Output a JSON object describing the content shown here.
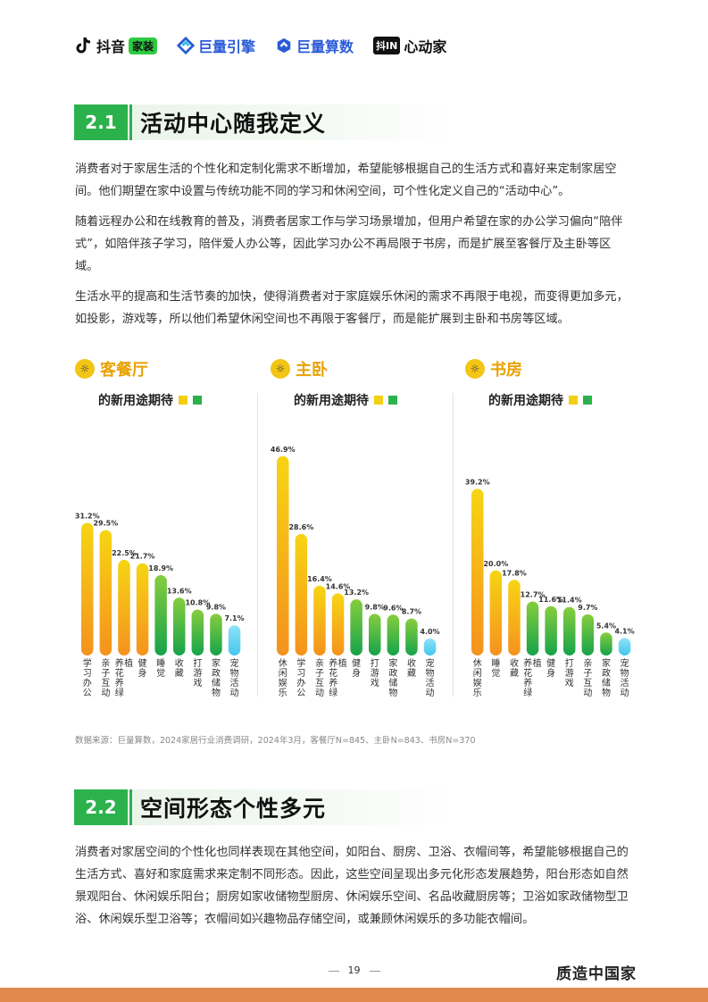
{
  "header": {
    "logos": [
      {
        "name": "抖音",
        "tag": "家装"
      },
      {
        "name": "巨量引擎"
      },
      {
        "name": "巨量算数"
      },
      {
        "name": "心动家",
        "tag": "抖IN"
      }
    ]
  },
  "section1": {
    "num": "2.1",
    "title": "活动中心随我定义",
    "paragraphs": [
      "消费者对于家居生活的个性化和定制化需求不断增加，希望能够根据自己的生活方式和喜好来定制家居空间。他们期望在家中设置与传统功能不同的学习和休闲空间，可个性化定义自己的“活动中心”。",
      "随着远程办公和在线教育的普及，消费者居家工作与学习场景增加，但用户希望在家的办公学习偏向“陪伴式”，如陪伴孩子学习，陪伴爱人办公等，因此学习办公不再局限于书房，而是扩展至客餐厅及主卧等区域。",
      "生活水平的提高和生活节奏的加快，使得消费者对于家庭娱乐休闲的需求不再限于电视，而变得更加多元，如投影，游戏等，所以他们希望休闲空间也不再限于客餐厅，而是能扩展到主卧和书房等区域。"
    ]
  },
  "chart_subtitle": "的新用途期待",
  "chart_data": [
    {
      "type": "bar",
      "title": "客餐厅",
      "categories": [
        "学习办公",
        "亲子互动",
        "养花养绿植",
        "健身",
        "睡觉",
        "收藏",
        "打游戏",
        "家政储物",
        "宠物活动"
      ],
      "values": [
        31.2,
        29.5,
        22.5,
        21.7,
        18.9,
        13.6,
        10.8,
        9.8,
        7.1
      ],
      "labels": [
        "31.2%",
        "29.5%",
        "22.5%",
        "21.7%",
        "18.9%",
        "13.6%",
        "10.8%",
        "9.8%",
        "7.1%"
      ],
      "colors": [
        "yellow",
        "yellow",
        "yellow",
        "yellow",
        "green",
        "green",
        "green",
        "green",
        "blue"
      ],
      "ylim": [
        0,
        50
      ]
    },
    {
      "type": "bar",
      "title": "主卧",
      "categories": [
        "休闲娱乐",
        "学习办公",
        "亲子互动",
        "养花养绿植",
        "健身",
        "打游戏",
        "家政储物",
        "收藏",
        "宠物活动"
      ],
      "values": [
        46.9,
        28.6,
        16.4,
        14.6,
        13.2,
        9.8,
        9.6,
        8.7,
        4.0
      ],
      "labels": [
        "46.9%",
        "28.6%",
        "16.4%",
        "14.6%",
        "13.2%",
        "9.8%",
        "9.6%",
        "8.7%",
        "4.0%"
      ],
      "colors": [
        "yellow",
        "yellow",
        "yellow",
        "yellow",
        "green",
        "green",
        "green",
        "green",
        "blue"
      ],
      "ylim": [
        0,
        50
      ]
    },
    {
      "type": "bar",
      "title": "书房",
      "categories": [
        "休闲娱乐",
        "睡觉",
        "收藏",
        "养花养绿植",
        "健身",
        "打游戏",
        "亲子互动",
        "家政储物",
        "宠物活动"
      ],
      "values": [
        39.2,
        20.0,
        17.8,
        12.7,
        11.6,
        11.4,
        9.7,
        5.4,
        4.1
      ],
      "labels": [
        "39.2%",
        "20.0%",
        "17.8%",
        "12.7%",
        "11.6%",
        "11.4%",
        "9.7%",
        "5.4%",
        "4.1%"
      ],
      "colors": [
        "yellow",
        "yellow",
        "yellow",
        "green",
        "green",
        "green",
        "green",
        "green",
        "blue"
      ],
      "ylim": [
        0,
        50
      ]
    }
  ],
  "source": "数据来源：巨量算数，2024家居行业消费调研，2024年3月，客餐厅N=845、主卧N=843、书房N=370",
  "section2": {
    "num": "2.2",
    "title": "空间形态个性多元",
    "paragraph": "消费者对家居空间的个性化也同样表现在其他空间，如阳台、厨房、卫浴、衣帽间等，希望能够根据自己的生活方式、喜好和家庭需求来定制不同形态。因此，这些空间呈现出多元化形态发展趋势，阳台形态如自然景观阳台、休闲娱乐阳台；厨房如家收储物型厨房、休闲娱乐空间、名品收藏厨房等；卫浴如家政储物型卫浴、休闲娱乐型卫浴等；衣帽间如兴趣物品存储空间，或兼顾休闲娱乐的多功能衣帽间。"
  },
  "footer": {
    "page": "19",
    "brand": "质造中国家"
  },
  "colors": {
    "accent_green": "#2bb24c",
    "bar_yellow": "#f3cf14",
    "bar_orange": "#f5921e",
    "bar_green_top": "#7cc940",
    "bar_green_bottom": "#1aa64a",
    "bar_blue": "#5fd0f0",
    "footer": "#e0894c"
  }
}
